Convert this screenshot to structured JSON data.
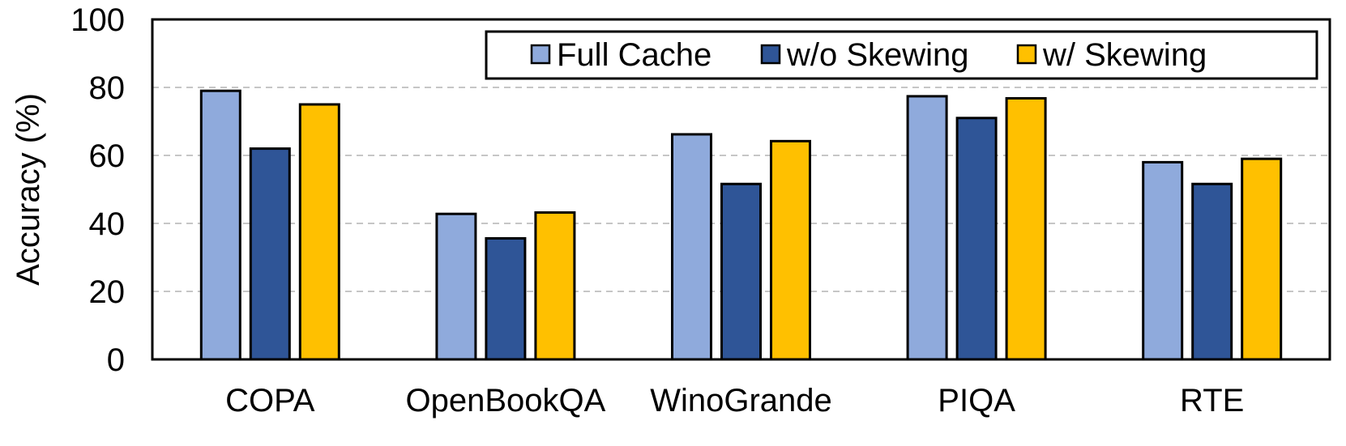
{
  "chart_data": {
    "type": "bar",
    "categories": [
      "COPA",
      "OpenBookQA",
      "WinoGrande",
      "PIQA",
      "RTE"
    ],
    "series": [
      {
        "name": "Full Cache",
        "color": "#8faadc",
        "values": [
          79,
          42.8,
          66.2,
          77.4,
          58
        ]
      },
      {
        "name": "w/o Skewing",
        "color": "#2f5597",
        "values": [
          62,
          35.6,
          51.6,
          71,
          51.6
        ]
      },
      {
        "name": "w/ Skewing",
        "color": "#ffc000",
        "values": [
          75,
          43.2,
          64.2,
          76.8,
          59
        ]
      }
    ],
    "ylabel": "Accuracy (%)",
    "ylim": [
      0,
      100
    ],
    "yticks": [
      0,
      20,
      40,
      60,
      80,
      100
    ],
    "grid": true,
    "legend_position": "top-right"
  }
}
